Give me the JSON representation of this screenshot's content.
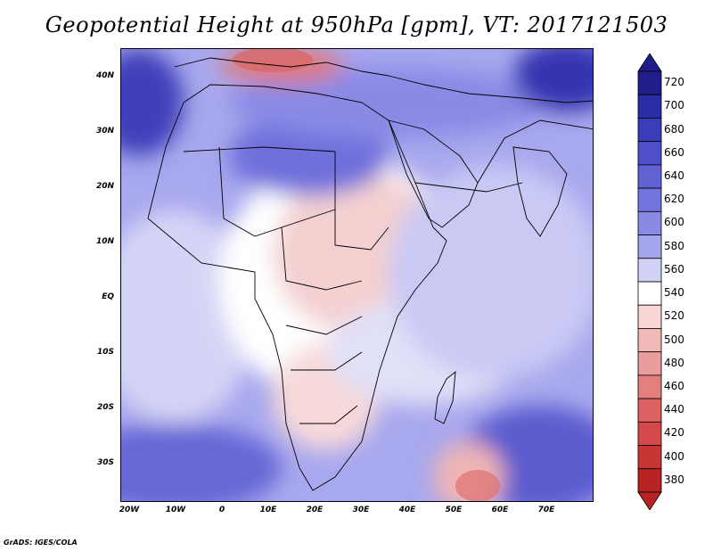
{
  "title": "Geopotential Height at 950hPa [gpm], VT: 2017121503",
  "footer": "GrADS: IGES/COLA",
  "latitude_labels": [
    "40N",
    "30N",
    "20N",
    "10N",
    "EQ",
    "10S",
    "20S",
    "30S"
  ],
  "longitude_labels": [
    "20W",
    "10W",
    "0",
    "10E",
    "20E",
    "30E",
    "40E",
    "50E",
    "60E",
    "70E"
  ],
  "colorbar": {
    "values": [
      "720",
      "700",
      "680",
      "660",
      "640",
      "620",
      "600",
      "580",
      "560",
      "540",
      "520",
      "500",
      "480",
      "460",
      "440",
      "420",
      "400",
      "380"
    ],
    "colors": [
      "#221c8a",
      "#2a2ea6",
      "#3b3db8",
      "#4f4fc8",
      "#6262d4",
      "#7474de",
      "#8a8ae6",
      "#a5a5ee",
      "#d2d2f7",
      "#ffffff",
      "#f8d6d6",
      "#f2b9b9",
      "#eb9c9c",
      "#e47f7f",
      "#dd6262",
      "#d44a4a",
      "#c93434",
      "#b82222"
    ]
  },
  "chart_data": {
    "type": "heatmap",
    "title": "Geopotential Height at 950hPa [gpm], VT: 2017121503",
    "variable": "Geopotential Height at 950hPa",
    "units": "gpm",
    "valid_time": "2017121503",
    "x_range": [
      -22,
      78
    ],
    "y_range": [
      -37,
      45
    ],
    "colorbar_range": [
      380,
      720
    ],
    "colorbar_step": 20
  }
}
